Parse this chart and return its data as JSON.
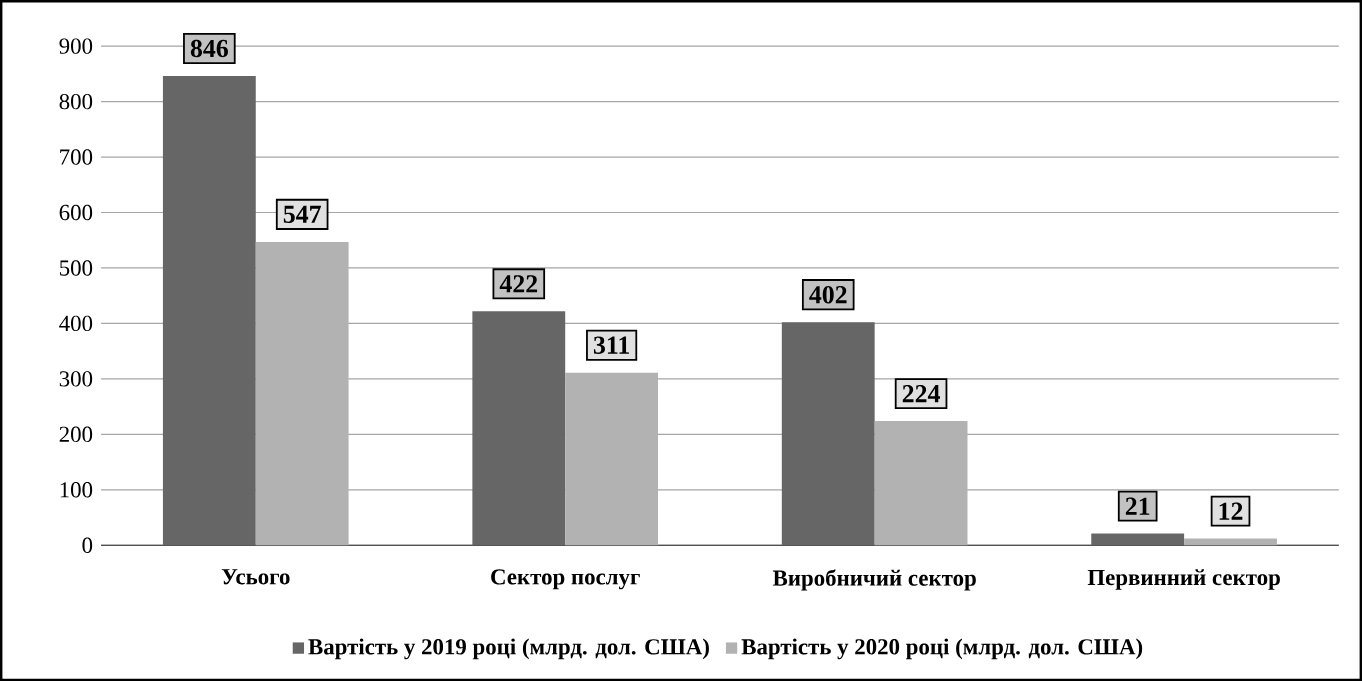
{
  "chart_data": {
    "type": "bar",
    "categories": [
      "Усього",
      "Сектор послуг",
      "Виробничий сектор",
      "Первинний сектор"
    ],
    "series": [
      {
        "name": "Вартість у 2019 році (млрд. дол. США)",
        "color": "#666666",
        "values": [
          846,
          422,
          402,
          21
        ]
      },
      {
        "name": "Вартість у 2020 році (млрд. дол. США)",
        "color": "#b2b2b2",
        "values": [
          547,
          311,
          224,
          12
        ]
      }
    ],
    "ylim": [
      0,
      900
    ],
    "yticks": [
      0,
      100,
      200,
      300,
      400,
      500,
      600,
      700,
      800,
      900
    ],
    "grid": "y",
    "legend": "bottom",
    "data_labels": true
  }
}
